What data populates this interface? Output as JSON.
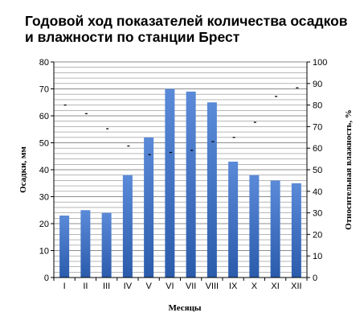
{
  "chart_data": {
    "type": "bar",
    "title": "Годовой ход показателей количества осадков и влажности по станции Брест",
    "xlabel": "Месяцы",
    "ylabel": "Осадки, мм",
    "y2label": "Относительная влажность, %",
    "categories": [
      "I",
      "II",
      "III",
      "IV",
      "V",
      "VI",
      "VII",
      "VIII",
      "IX",
      "X",
      "XI",
      "XII"
    ],
    "series": [
      {
        "type": "bar",
        "axis": "left",
        "values": [
          23,
          25,
          24,
          38,
          52,
          70,
          69,
          65,
          43,
          38,
          36,
          35
        ]
      },
      {
        "type": "scatter",
        "axis": "right",
        "values": [
          80,
          76,
          69,
          61,
          57,
          58,
          59,
          63,
          65,
          72,
          84,
          88
        ]
      }
    ],
    "ylim": [
      0,
      80
    ],
    "yticks": [
      0,
      10,
      20,
      30,
      40,
      50,
      60,
      70,
      80
    ],
    "y2lim": [
      0,
      100
    ],
    "y2ticks": [
      0,
      10,
      20,
      30,
      40,
      50,
      60,
      70,
      80,
      90,
      100
    ],
    "grid": true,
    "legend": "none",
    "colors": {
      "bar_top": "#5a8ad8",
      "bar_bottom": "#2b5bab",
      "grid": "#8c8c8c",
      "marker": "#000000"
    }
  }
}
